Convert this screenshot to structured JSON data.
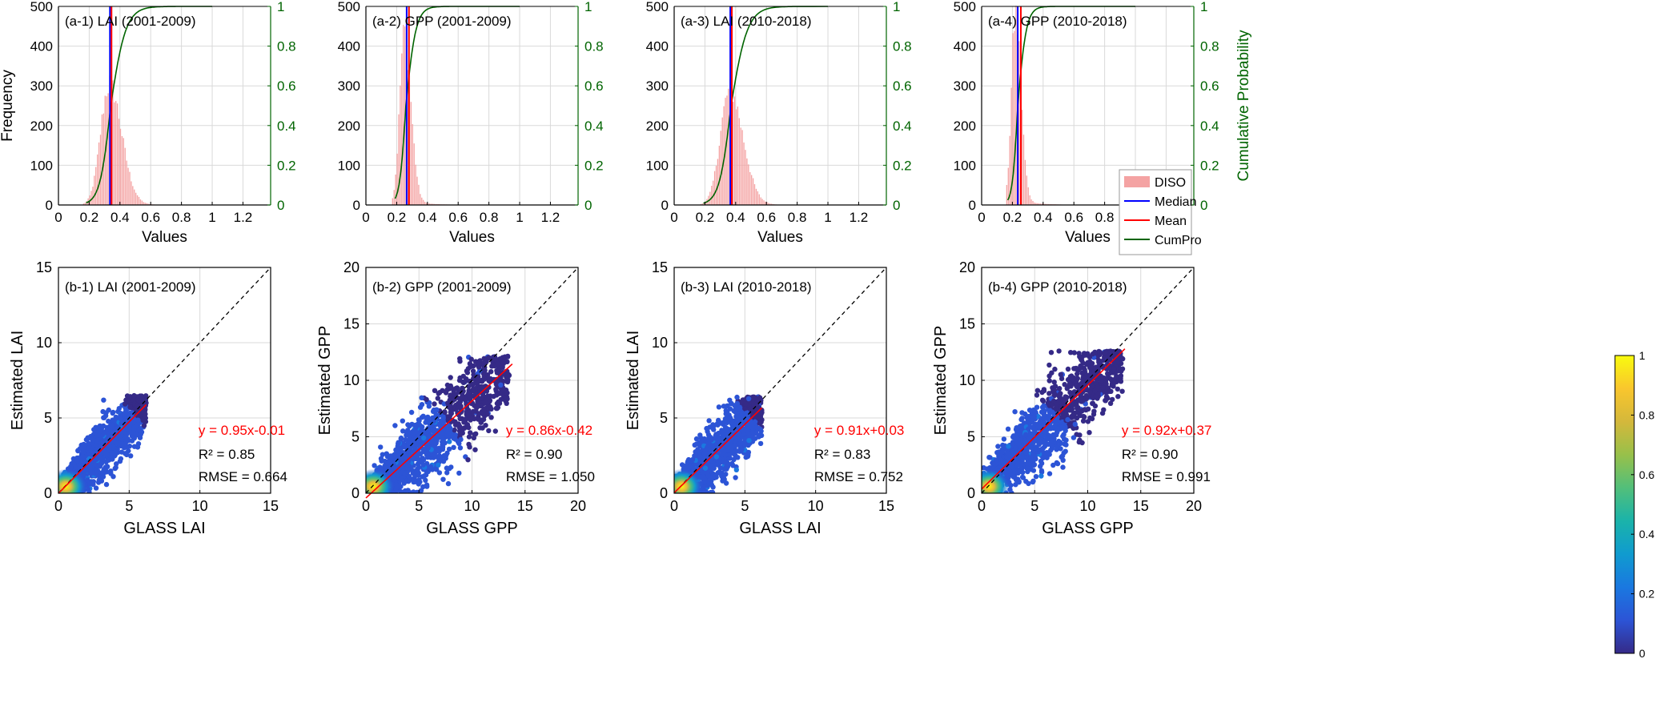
{
  "legend": {
    "items": [
      {
        "label": "DISO",
        "kind": "bar",
        "color": "#f4a3a3"
      },
      {
        "label": "Median",
        "kind": "line",
        "color": "#0000ff"
      },
      {
        "label": "Mean",
        "kind": "line",
        "color": "#ff0000"
      },
      {
        "label": "CumPro",
        "kind": "line",
        "color": "#006400"
      }
    ]
  },
  "colorbar": {
    "ticks": [
      "1",
      "0.8",
      "0.6",
      "0.4",
      "0.2",
      "0"
    ],
    "colors": [
      "#352a87",
      "#2c54d6",
      "#1a78e0",
      "#109bcf",
      "#1ab3aa",
      "#52bf7a",
      "#98c04a",
      "#d4b83b",
      "#f9c62d",
      "#f9fb0e"
    ]
  },
  "colors": {
    "histogram": "#f4a3a3",
    "median": "#0000ff",
    "mean": "#ff0000",
    "cumpro": "#006400",
    "fit": "#ff0000",
    "one_to_one": "#000000",
    "grid": "#d9d9d9"
  },
  "chart_data": [
    {
      "type": "bar",
      "panel": "a-1",
      "title": "(a-1) LAI (2001-2009)",
      "xlabel": "Values",
      "ylabel": "Frequency",
      "y2label": "",
      "xlim": [
        0,
        1.38
      ],
      "ylim": [
        0,
        500
      ],
      "y2lim": [
        0,
        1
      ],
      "xticks": [
        "0",
        "0.2",
        "0.4",
        "0.6",
        "0.8",
        "1",
        "1.2"
      ],
      "yticks": [
        "0",
        "100",
        "200",
        "300",
        "400",
        "500"
      ],
      "y2ticks": [
        "0",
        "0.2",
        "0.4",
        "0.6",
        "0.8",
        "1"
      ],
      "median": 0.335,
      "mean": 0.345,
      "hist": {
        "center": 0.33,
        "sigma": 0.065,
        "peak": 300,
        "start": 0.16,
        "tail_to": 0.8
      },
      "cumpro": {
        "mu": 0.34,
        "s": 0.06,
        "skew": 1.4,
        "x0": 0.18,
        "x1": 0.8
      }
    },
    {
      "type": "bar",
      "panel": "a-2",
      "title": "(a-2) GPP (2001-2009)",
      "xlabel": "Values",
      "ylabel": "",
      "y2label": "",
      "xlim": [
        0,
        1.38
      ],
      "ylim": [
        0,
        500
      ],
      "y2lim": [
        0,
        1
      ],
      "xticks": [
        "0",
        "0.2",
        "0.4",
        "0.6",
        "0.8",
        "1",
        "1.2"
      ],
      "yticks": [
        "0",
        "100",
        "200",
        "300",
        "400",
        "500"
      ],
      "y2ticks": [
        "0",
        "0.2",
        "0.4",
        "0.6",
        "0.8",
        "1"
      ],
      "median": 0.265,
      "mean": 0.28,
      "hist": {
        "center": 0.25,
        "sigma": 0.035,
        "peak": 430,
        "start": 0.17,
        "tail_to": 0.65
      },
      "cumpro": {
        "mu": 0.26,
        "s": 0.035,
        "skew": 1.6,
        "x0": 0.19,
        "x1": 0.65
      }
    },
    {
      "type": "bar",
      "panel": "a-3",
      "title": "(a-3) LAI (2010-2018)",
      "xlabel": "Values",
      "ylabel": "",
      "y2label": "",
      "xlim": [
        0,
        1.38
      ],
      "ylim": [
        0,
        500
      ],
      "y2lim": [
        0,
        1
      ],
      "xticks": [
        "0",
        "0.2",
        "0.4",
        "0.6",
        "0.8",
        "1",
        "1.2"
      ],
      "yticks": [
        "0",
        "100",
        "200",
        "300",
        "400",
        "500"
      ],
      "y2ticks": [
        "0",
        "0.2",
        "0.4",
        "0.6",
        "0.8",
        "1"
      ],
      "median": 0.365,
      "mean": 0.375,
      "hist": {
        "center": 0.36,
        "sigma": 0.07,
        "peak": 285,
        "start": 0.17,
        "tail_to": 0.8
      },
      "cumpro": {
        "mu": 0.37,
        "s": 0.065,
        "skew": 1.4,
        "x0": 0.19,
        "x1": 0.8
      }
    },
    {
      "type": "bar",
      "panel": "a-4",
      "title": "(a-4) GPP (2010-2018)",
      "xlabel": "Values",
      "ylabel": "",
      "y2label": "Cumulative Probability",
      "xlim": [
        0,
        1.38
      ],
      "ylim": [
        0,
        500
      ],
      "y2lim": [
        0,
        1
      ],
      "xticks": [
        "0",
        "0.2",
        "0.4",
        "0.6",
        "0.8",
        "1",
        "1.2"
      ],
      "yticks": [
        "0",
        "100",
        "200",
        "300",
        "400",
        "500"
      ],
      "y2ticks": [
        "0",
        "0.2",
        "0.4",
        "0.6",
        "0.8",
        "1"
      ],
      "median": 0.235,
      "mean": 0.255,
      "hist": {
        "center": 0.22,
        "sigma": 0.03,
        "peak": 470,
        "start": 0.16,
        "tail_to": 0.6
      },
      "cumpro": {
        "mu": 0.235,
        "s": 0.03,
        "skew": 1.6,
        "x0": 0.17,
        "x1": 0.6
      }
    },
    {
      "type": "scatter",
      "panel": "b-1",
      "title": "(b-1) LAI (2001-2009)",
      "xlabel": "GLASS LAI",
      "ylabel": "Estimated LAI",
      "xlim": [
        0,
        15
      ],
      "ylim": [
        0,
        15
      ],
      "xticks": [
        "0",
        "5",
        "10",
        "15"
      ],
      "yticks": [
        "0",
        "5",
        "10",
        "15"
      ],
      "fit": {
        "slope": 0.95,
        "intercept": -0.01,
        "x_end": 6.2
      },
      "equation": "y = 0.95x-0.01",
      "r2": "R² = 0.85",
      "rmse": "RMSE = 0.664",
      "cloud": {
        "xmax": 6.2,
        "ymax": 6.5,
        "spread": 0.9
      }
    },
    {
      "type": "scatter",
      "panel": "b-2",
      "title": "(b-2) GPP (2001-2009)",
      "xlabel": "GLASS GPP",
      "ylabel": "Estimated GPP",
      "xlim": [
        0,
        20
      ],
      "ylim": [
        0,
        20
      ],
      "xticks": [
        "0",
        "5",
        "10",
        "15",
        "20"
      ],
      "yticks": [
        "0",
        "5",
        "10",
        "15",
        "20"
      ],
      "fit": {
        "slope": 0.86,
        "intercept": -0.42,
        "x_end": 13.8
      },
      "equation": "y = 0.86x-0.42",
      "r2": "R² = 0.90",
      "rmse": "RMSE = 1.050",
      "cloud": {
        "xmax": 13.5,
        "ymax": 12.2,
        "spread": 1.8
      }
    },
    {
      "type": "scatter",
      "panel": "b-3",
      "title": "(b-3) LAI (2010-2018)",
      "xlabel": "GLASS LAI",
      "ylabel": "Estimated LAI",
      "xlim": [
        0,
        15
      ],
      "ylim": [
        0,
        15
      ],
      "xticks": [
        "0",
        "5",
        "10",
        "15"
      ],
      "yticks": [
        "0",
        "5",
        "10",
        "15"
      ],
      "fit": {
        "slope": 0.91,
        "intercept": 0.03,
        "x_end": 6.2
      },
      "equation": "y = 0.91x+0.03",
      "r2": "R² = 0.83",
      "rmse": "RMSE = 0.752",
      "cloud": {
        "xmax": 6.2,
        "ymax": 6.4,
        "spread": 1.0
      }
    },
    {
      "type": "scatter",
      "panel": "b-4",
      "title": "(b-4) GPP (2010-2018)",
      "xlabel": "GLASS GPP",
      "ylabel": "Estimated GPP",
      "xlim": [
        0,
        20
      ],
      "ylim": [
        0,
        20
      ],
      "xticks": [
        "0",
        "5",
        "10",
        "15",
        "20"
      ],
      "yticks": [
        "0",
        "5",
        "10",
        "15",
        "20"
      ],
      "fit": {
        "slope": 0.92,
        "intercept": 0.37,
        "x_end": 13.5
      },
      "equation": "y = 0.92x+0.37",
      "r2": "R² = 0.90",
      "rmse": "RMSE = 0.991",
      "cloud": {
        "xmax": 13.3,
        "ymax": 12.6,
        "spread": 1.7
      }
    }
  ]
}
